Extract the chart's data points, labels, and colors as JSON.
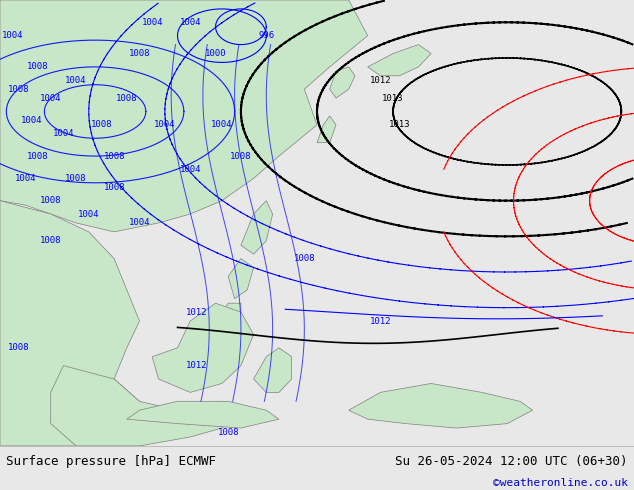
{
  "title_left": "Surface pressure [hPa] ECMWF",
  "title_right": "Su 26-05-2024 12:00 UTC (06+30)",
  "credit": "©weatheronline.co.uk",
  "bg_color": "#e8e8e8",
  "land_color": "#c8e6c8",
  "figsize": [
    6.34,
    4.9
  ],
  "dpi": 100,
  "bottom_bar_color": "#f0f0f0",
  "title_color": "#000000",
  "credit_color": "#0000cc"
}
